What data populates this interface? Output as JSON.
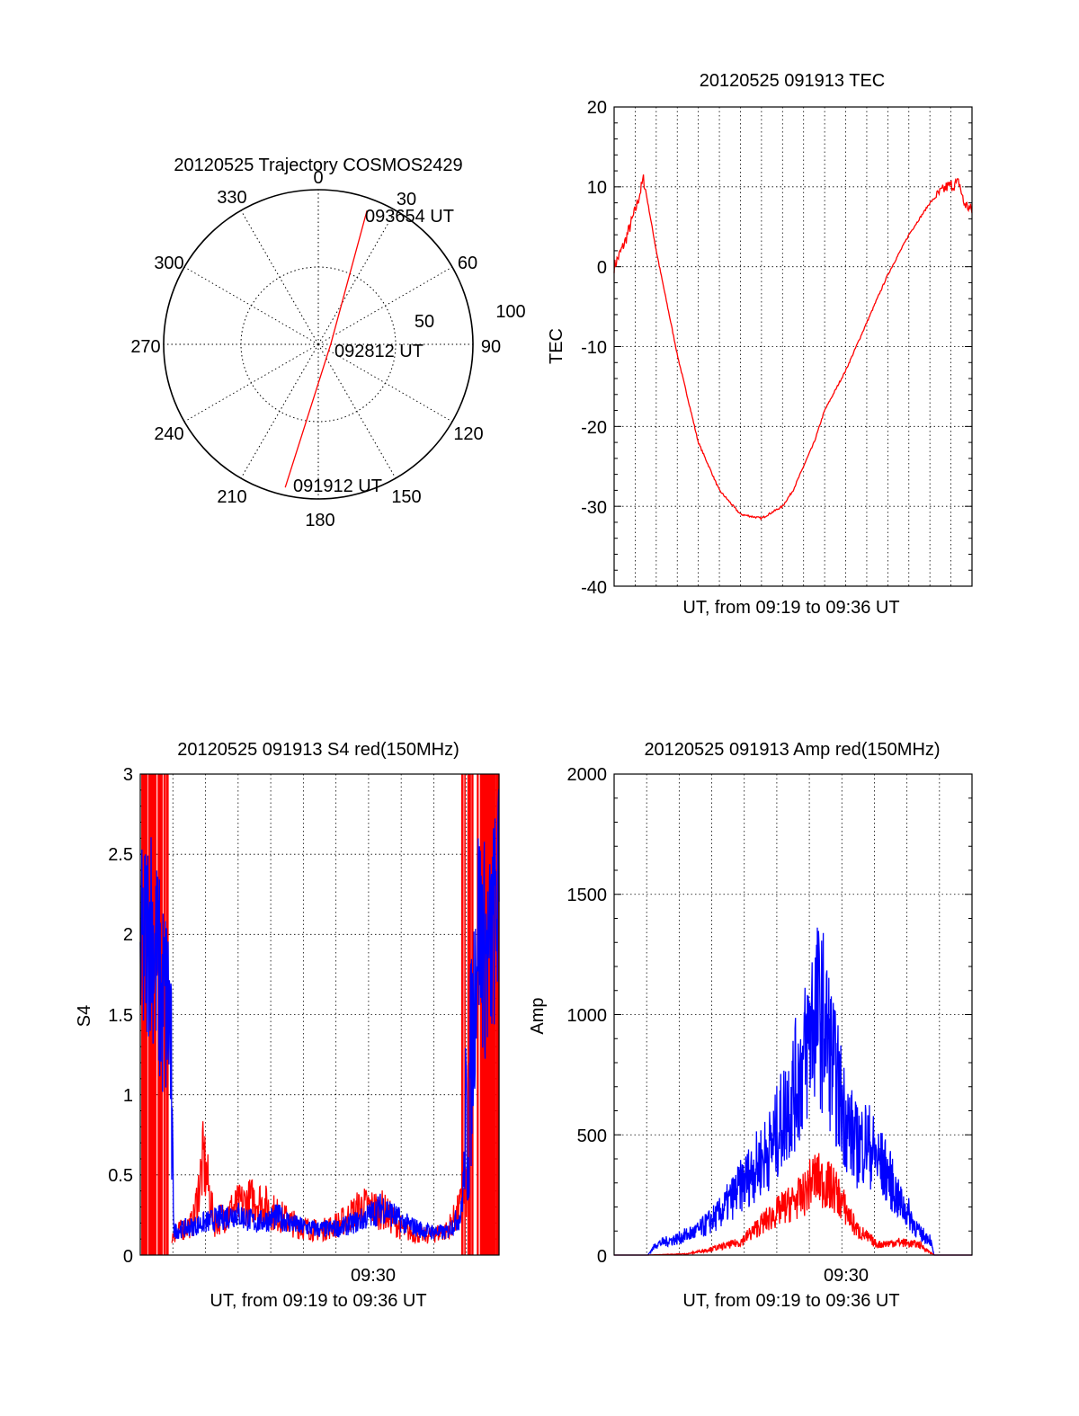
{
  "colors": {
    "red": "#ff0000",
    "blue": "#0000ff",
    "axis": "#000000",
    "grid": "#000000"
  },
  "chart_data": [
    {
      "id": "polar",
      "type": "polar-trajectory",
      "title": "20120525 Trajectory COSMOS2429",
      "azimuth_labels": [
        "0",
        "30",
        "60",
        "90",
        "120",
        "150",
        "180",
        "210",
        "240",
        "270",
        "300",
        "330"
      ],
      "elevation_ring_labels": [
        "50",
        "100"
      ],
      "trajectory": {
        "start": {
          "azimuth": 193,
          "elevation_ratio": 0.95,
          "label": "091912 UT"
        },
        "mid": {
          "azimuth": 90,
          "elevation_ratio": 0.08,
          "label": "092812 UT"
        },
        "end": {
          "azimuth": 20,
          "elevation_ratio": 0.92,
          "label": "093654 UT"
        }
      }
    },
    {
      "id": "tec",
      "type": "line",
      "title": "20120525 091913 TEC",
      "xlabel": "UT, from 09:19 to 09:36 UT",
      "ylabel": "TEC",
      "ylim": [
        -40,
        20
      ],
      "yticks": [
        "20",
        "10",
        "0",
        "-10",
        "-20",
        "-30",
        "-40"
      ],
      "xlim_minutes": [
        0,
        17
      ],
      "series": [
        {
          "name": "TEC",
          "color": "red",
          "x": [
            0,
            0.5,
            1.0,
            1.4,
            2.0,
            3.0,
            4.0,
            5.0,
            6.0,
            7.0,
            8.0,
            8.5,
            9.0,
            9.5,
            10.0,
            11.0,
            12.0,
            13.0,
            14.0,
            15.0,
            15.8,
            16.4,
            16.6,
            17.0
          ],
          "y": [
            0,
            3,
            7,
            11,
            2,
            -11,
            -22,
            -28,
            -31,
            -31.5,
            -30,
            -28,
            -25,
            -22,
            -18,
            -13,
            -7,
            -1,
            4,
            8,
            10,
            10.5,
            8,
            7
          ]
        }
      ]
    },
    {
      "id": "s4",
      "type": "line",
      "title": "20120525 091913 S4 red(150MHz)",
      "xlabel": "UT, from 09:19 to 09:36 UT",
      "xtick_label": "09:30",
      "ylabel": "S4",
      "ylim": [
        0,
        3
      ],
      "yticks": [
        "3",
        "2.5",
        "2",
        "1.5",
        "1",
        "0.5",
        "0"
      ],
      "xlim_minutes": [
        0,
        17
      ],
      "series": [
        {
          "name": "S4 red",
          "color": "red",
          "x": [
            1.5,
            2.5,
            3.0,
            3.5,
            4.5,
            5.5,
            6.5,
            7.5,
            8.5,
            9.5,
            10.5,
            11.5,
            12.5,
            13.5,
            14.5,
            15.0,
            15.5
          ],
          "y": [
            0.12,
            0.2,
            0.6,
            0.2,
            0.3,
            0.35,
            0.25,
            0.18,
            0.15,
            0.2,
            0.3,
            0.28,
            0.15,
            0.12,
            0.15,
            0.25,
            0.4
          ]
        },
        {
          "name": "S4 blue",
          "color": "blue",
          "x": [
            0,
            0.5,
            1.0,
            1.4,
            1.6,
            2.5,
            3.5,
            4.5,
            5.5,
            6.5,
            7.5,
            8.5,
            9.5,
            10.5,
            11.5,
            12.5,
            13.5,
            14.5,
            15.2,
            15.6,
            16.0,
            16.5,
            17.0
          ],
          "y": [
            1.8,
            2.1,
            1.6,
            1.5,
            0.15,
            0.18,
            0.22,
            0.26,
            0.2,
            0.24,
            0.18,
            0.16,
            0.17,
            0.22,
            0.3,
            0.2,
            0.15,
            0.14,
            0.25,
            1.0,
            2.1,
            1.8,
            2.3
          ]
        }
      ]
    },
    {
      "id": "amp",
      "type": "line",
      "title": "20120525 091913 Amp red(150MHz)",
      "xlabel": "UT, from 09:19 to 09:36 UT",
      "xtick_label": "09:30",
      "ylabel": "Amp",
      "ylim": [
        0,
        2000
      ],
      "yticks": [
        "2000",
        "1500",
        "1000",
        "500",
        "0"
      ],
      "xlim_minutes": [
        0,
        17
      ],
      "series": [
        {
          "name": "Amp red",
          "color": "red",
          "x": [
            0,
            1.6,
            3.5,
            5.0,
            6.0,
            7.0,
            8.0,
            9.0,
            9.5,
            10.5,
            11.5,
            12.5,
            13.5,
            14.5,
            15.2,
            17.0
          ],
          "y": [
            0,
            0,
            5,
            30,
            50,
            120,
            180,
            230,
            300,
            250,
            100,
            40,
            50,
            40,
            0,
            0
          ]
        },
        {
          "name": "Amp blue",
          "color": "blue",
          "x": [
            0,
            1.6,
            2.0,
            3.0,
            4.0,
            5.0,
            6.0,
            7.0,
            7.5,
            8.0,
            8.5,
            9.0,
            9.5,
            10.0,
            10.5,
            11.0,
            11.5,
            12.0,
            12.5,
            13.0,
            13.5,
            14.0,
            14.5,
            15.0,
            15.2,
            17.0
          ],
          "y": [
            0,
            0,
            40,
            60,
            90,
            150,
            250,
            350,
            400,
            500,
            600,
            700,
            900,
            850,
            650,
            500,
            400,
            420,
            350,
            300,
            200,
            150,
            80,
            60,
            0,
            0
          ]
        }
      ]
    }
  ]
}
